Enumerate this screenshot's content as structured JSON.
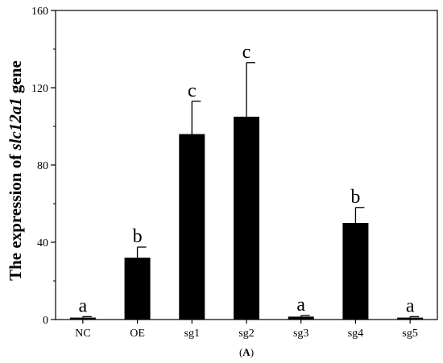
{
  "chart_data": {
    "type": "bar",
    "categories": [
      "NC",
      "OE",
      "sg1",
      "sg2",
      "sg3",
      "sg4",
      "sg5"
    ],
    "values": [
      1,
      32,
      96,
      105,
      1.5,
      50,
      1
    ],
    "errors": [
      0.5,
      5.5,
      17,
      28,
      0.6,
      8,
      0.5
    ],
    "significance": [
      "a",
      "b",
      "c",
      "c",
      "a",
      "b",
      "a"
    ],
    "ylabel_prefix": "The expression of ",
    "ylabel_gene": "slc12a1",
    "ylabel_suffix": " gene",
    "ylim": [
      0,
      160
    ],
    "yticks": [
      0,
      40,
      80,
      120,
      160
    ],
    "caption_open": "(",
    "caption_letter": "A",
    "caption_close": ")",
    "bar_color": "#000000",
    "grid": false
  }
}
